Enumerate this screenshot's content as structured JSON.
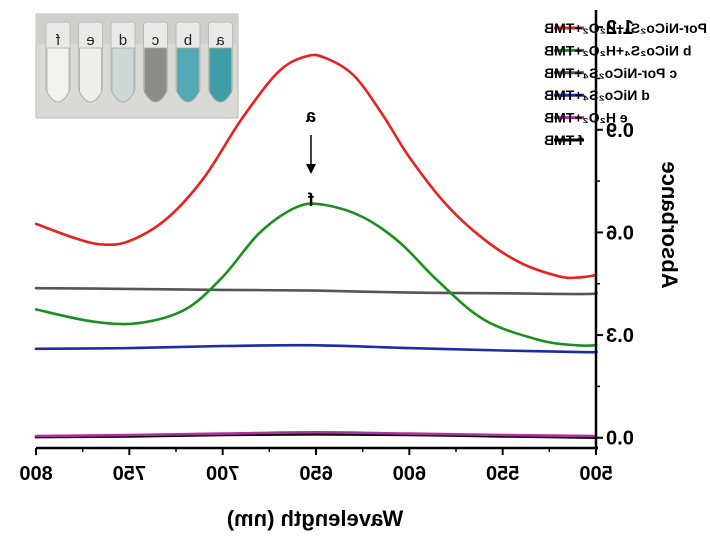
{
  "chart_data": {
    "type": "line",
    "xlabel": "Wavelength (nm)",
    "ylabel": "Absorbance",
    "xlim": [
      500,
      800
    ],
    "ylim": [
      -0.03,
      1.25
    ],
    "x_reversed": true,
    "y_axis_side": "right",
    "mirrored": true,
    "x_ticks": [
      800,
      750,
      700,
      650,
      600,
      550,
      500
    ],
    "y_ticks": [
      0.0,
      0.3,
      0.6,
      0.9,
      1.2
    ],
    "x_tick_labels": [
      "800",
      "750",
      "700",
      "650",
      "600",
      "550",
      "500"
    ],
    "y_tick_labels": [
      "0.0",
      "0.3",
      "0.6",
      "0.9",
      "1.2"
    ],
    "legend_placement": "top-right",
    "series": [
      {
        "name": "a Por-NiCo₂S₄+H₂O₂+TMB",
        "color": "#e8211d",
        "points": [
          [
            500,
            0.475
          ],
          [
            510,
            0.468
          ],
          [
            520,
            0.472
          ],
          [
            540,
            0.51
          ],
          [
            560,
            0.58
          ],
          [
            580,
            0.68
          ],
          [
            600,
            0.82
          ],
          [
            615,
            0.95
          ],
          [
            630,
            1.06
          ],
          [
            645,
            1.11
          ],
          [
            655,
            1.115
          ],
          [
            670,
            1.07
          ],
          [
            690,
            0.93
          ],
          [
            710,
            0.76
          ],
          [
            730,
            0.64
          ],
          [
            750,
            0.575
          ],
          [
            765,
            0.565
          ],
          [
            780,
            0.585
          ],
          [
            800,
            0.625
          ]
        ]
      },
      {
        "name": "b NiCo₂S₄+H₂O₂+TMB",
        "color": "#1a8f1e",
        "points": [
          [
            500,
            0.27
          ],
          [
            510,
            0.27
          ],
          [
            530,
            0.285
          ],
          [
            560,
            0.345
          ],
          [
            585,
            0.46
          ],
          [
            605,
            0.57
          ],
          [
            625,
            0.645
          ],
          [
            645,
            0.68
          ],
          [
            660,
            0.675
          ],
          [
            680,
            0.6
          ],
          [
            700,
            0.47
          ],
          [
            720,
            0.375
          ],
          [
            745,
            0.335
          ],
          [
            770,
            0.34
          ],
          [
            800,
            0.375
          ]
        ]
      },
      {
        "name": "c Por-NiCo₂S₄+TMB",
        "color": "#555555",
        "points": [
          [
            500,
            0.425
          ],
          [
            505,
            0.42
          ],
          [
            550,
            0.422
          ],
          [
            600,
            0.424
          ],
          [
            650,
            0.43
          ],
          [
            700,
            0.432
          ],
          [
            750,
            0.435
          ],
          [
            800,
            0.437
          ]
        ]
      },
      {
        "name": "d NiCo₂S₄+TMB",
        "color": "#1e2aa8",
        "points": [
          [
            500,
            0.252
          ],
          [
            505,
            0.25
          ],
          [
            550,
            0.255
          ],
          [
            600,
            0.262
          ],
          [
            650,
            0.27
          ],
          [
            700,
            0.268
          ],
          [
            750,
            0.262
          ],
          [
            800,
            0.26
          ]
        ]
      },
      {
        "name": "e H₂O₂+TMB",
        "color": "#b0309d",
        "points": [
          [
            500,
            0.005
          ],
          [
            550,
            0.008
          ],
          [
            600,
            0.012
          ],
          [
            650,
            0.016
          ],
          [
            700,
            0.012
          ],
          [
            750,
            0.008
          ],
          [
            800,
            0.005
          ]
        ]
      },
      {
        "name": "f TMB",
        "color": "#000000",
        "points": [
          [
            500,
            0.0
          ],
          [
            550,
            0.004
          ],
          [
            600,
            0.008
          ],
          [
            650,
            0.01
          ],
          [
            700,
            0.008
          ],
          [
            750,
            0.004
          ],
          [
            800,
            0.002
          ]
        ]
      }
    ],
    "annotations": {
      "top_label": "a",
      "bottom_label": "f"
    },
    "inset": {
      "vial_labels": [
        "f",
        "e",
        "d",
        "c",
        "b",
        "a"
      ],
      "vial_colors": [
        "#f2f2ef",
        "#eeeeec",
        "#cfd6d6",
        "#8c8d89",
        "#52a9b3",
        "#3f9ea5"
      ]
    }
  }
}
